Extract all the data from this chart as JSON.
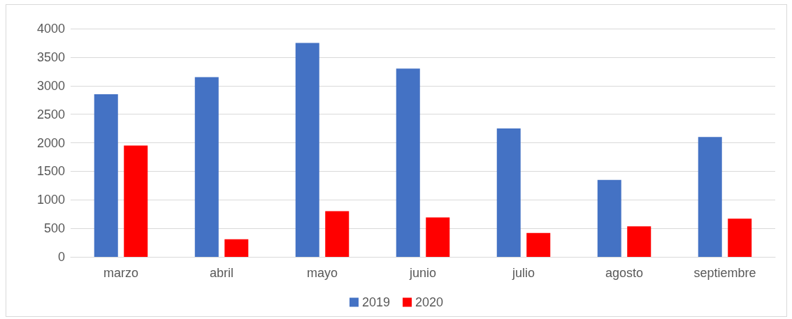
{
  "chart_data": {
    "type": "bar",
    "categories": [
      "marzo",
      "abril",
      "mayo",
      "junio",
      "julio",
      "agosto",
      "septiembre"
    ],
    "series": [
      {
        "name": "2019",
        "color": "#4472c4",
        "values": [
          2850,
          3150,
          3750,
          3300,
          2250,
          1350,
          2100
        ]
      },
      {
        "name": "2020",
        "color": "#ff0000",
        "values": [
          1950,
          310,
          800,
          690,
          420,
          535,
          670
        ]
      }
    ],
    "ylim": [
      0,
      4000
    ],
    "yticks": [
      0,
      500,
      1000,
      1500,
      2000,
      2500,
      3000,
      3500,
      4000
    ],
    "grid": "y",
    "legend": "bottom"
  }
}
